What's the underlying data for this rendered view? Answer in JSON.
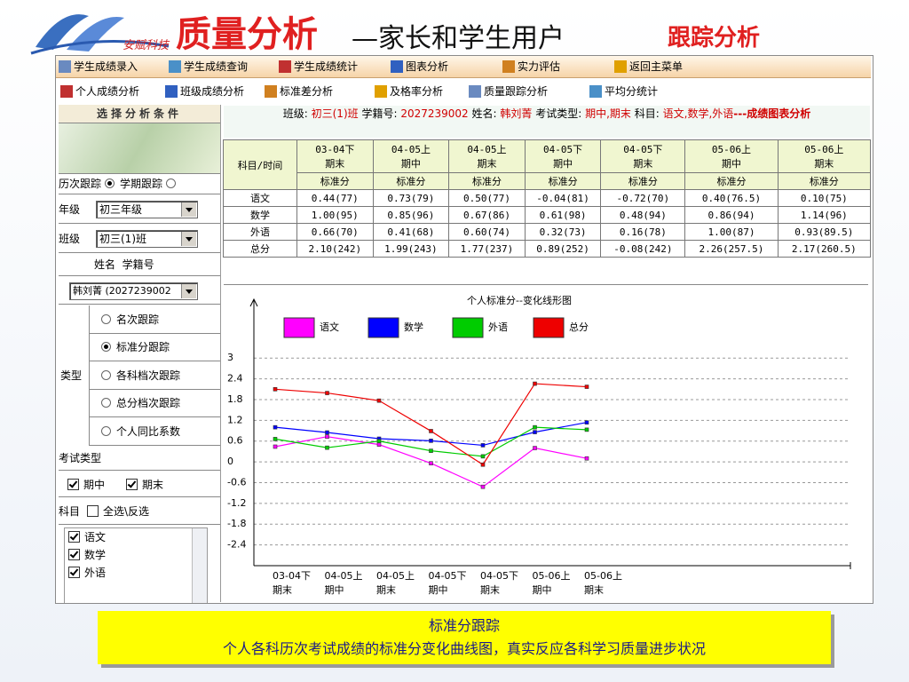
{
  "header": {
    "logo": "安赋科技",
    "title": "质量分析",
    "title_suffix": "—家长和学生用户",
    "subtitle": "跟踪分析"
  },
  "menu": [
    "学生成绩录入",
    "学生成绩查询",
    "学生成绩统计",
    "图表分析",
    "实力评估",
    "返回主菜单"
  ],
  "submenu": [
    "个人成绩分析",
    "班级成绩分析",
    "标准差分析",
    "及格率分析",
    "质量跟踪分析",
    "平均分统计"
  ],
  "sidebar": {
    "heading": "选择分析条件",
    "history_label": "历次跟踪",
    "history_option": "学期跟踪",
    "grade_label": "年级",
    "grade": "初三年级",
    "class_label": "班级",
    "class": "初三(1)班",
    "name_header": "姓名  学籍号",
    "student": "韩刘菁 (2027239002",
    "type_label": "类型",
    "types": [
      "名次跟踪",
      "标准分跟踪",
      "各科档次跟踪",
      "总分档次跟踪",
      "个人同比系数"
    ],
    "exam_type_label": "考试类型",
    "exams": [
      "期中",
      "期末"
    ],
    "subject_label": "科目",
    "select_all": "全选\\反选",
    "subjects": [
      "语文",
      "数学",
      "外语"
    ]
  },
  "info": {
    "class_label": "班级:",
    "class": "初三(1)班",
    "id_label": "学籍号:",
    "id": "2027239002",
    "name_label": "姓名:",
    "name": "韩刘菁",
    "exam_label": "考试类型:",
    "exam": "期中,期末",
    "subject_label": "科目:",
    "subjects": "语文,数学,外语",
    "suffix": "---成绩图表分析"
  },
  "table": {
    "corner": "科目/时间",
    "subheader": "标准分",
    "rows": [
      [
        "语文",
        "0.44(77)",
        "0.73(79)",
        "0.50(77)",
        "-0.04(81)",
        "-0.72(70)",
        "0.40(76.5)",
        "0.10(75)"
      ],
      [
        "数学",
        "1.00(95)",
        "0.85(96)",
        "0.67(86)",
        "0.61(98)",
        "0.48(94)",
        "0.86(94)",
        "1.14(96)"
      ],
      [
        "外语",
        "0.66(70)",
        "0.41(68)",
        "0.60(74)",
        "0.32(73)",
        "0.16(78)",
        "1.00(87)",
        "0.93(89.5)"
      ],
      [
        "总分",
        "2.10(242)",
        "1.99(243)",
        "1.77(237)",
        "0.89(252)",
        "-0.08(242)",
        "2.26(257.5)",
        "2.17(260.5)"
      ]
    ]
  },
  "chart_data": {
    "type": "line",
    "title": "个人标准分--变化线形图",
    "categories": [
      [
        "03-04下",
        "期末"
      ],
      [
        "04-05上",
        "期中"
      ],
      [
        "04-05上",
        "期末"
      ],
      [
        "04-05下",
        "期中"
      ],
      [
        "04-05下",
        "期末"
      ],
      [
        "05-06上",
        "期中"
      ],
      [
        "05-06上",
        "期末"
      ]
    ],
    "series": [
      {
        "name": "语文",
        "color": "#ff00ff",
        "values": [
          0.44,
          0.73,
          0.5,
          -0.04,
          -0.72,
          0.4,
          0.1
        ]
      },
      {
        "name": "数学",
        "color": "#0000ff",
        "values": [
          1.0,
          0.85,
          0.67,
          0.61,
          0.48,
          0.86,
          1.14
        ]
      },
      {
        "name": "外语",
        "color": "#00cc00",
        "values": [
          0.66,
          0.41,
          0.6,
          0.32,
          0.16,
          1.0,
          0.93
        ]
      },
      {
        "name": "总分",
        "color": "#ee0000",
        "values": [
          2.1,
          1.99,
          1.77,
          0.89,
          -0.08,
          2.26,
          2.17
        ]
      }
    ],
    "ylim": [
      -3,
      4.7
    ],
    "yticks": [
      3,
      2.4,
      1.8,
      1.2,
      0.6,
      0,
      -0.6,
      -1.2,
      -1.8,
      -2.4
    ],
    "grid": true
  },
  "caption": {
    "title": "标准分跟踪",
    "text": "个人各科历次考试成绩的标准分变化曲线图，真实反应各科学习质量进步状况"
  }
}
